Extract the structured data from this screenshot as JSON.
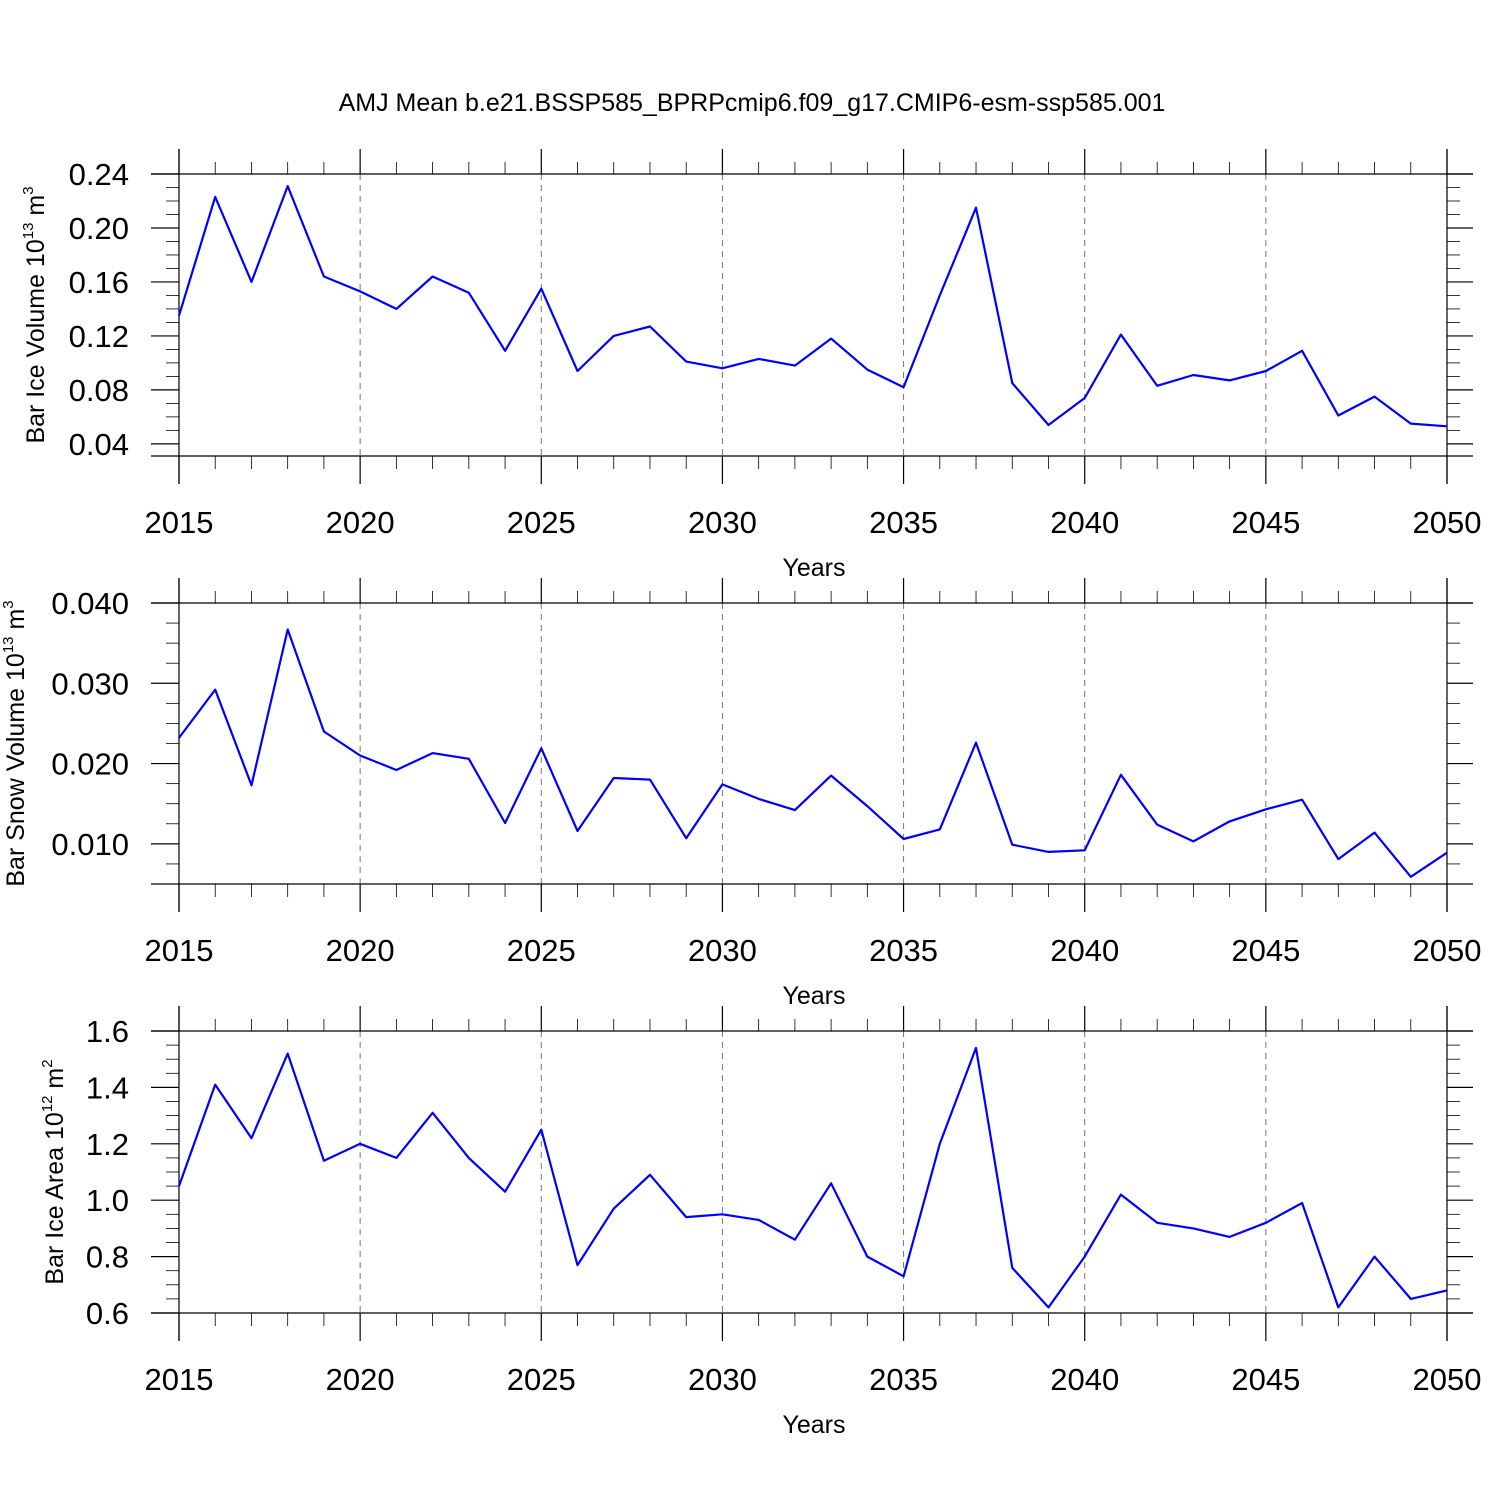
{
  "title": "AMJ Mean b.e21.BSSP585_BPRPcmip6.f09_g17.CMIP6-esm-ssp585.001",
  "colors": {
    "series": "#0000ff",
    "grid": "#777777",
    "frame": "#000000"
  },
  "chart_data": [
    {
      "type": "line",
      "id": "ice-volume",
      "xlabel": "Years",
      "ylabel": {
        "main": "Bar Ice Volume 10",
        "exp": "13",
        "unit": " m",
        "unit_exp": "3"
      },
      "xlim": [
        2015,
        2050
      ],
      "ylim": [
        0.031,
        0.24
      ],
      "yticks": [
        0.04,
        0.08,
        0.12,
        0.16,
        0.2,
        0.24
      ],
      "ytick_labels": [
        "0.04",
        "0.08",
        "0.12",
        "0.16",
        "0.20",
        "0.24"
      ],
      "xticks": [
        2015,
        2020,
        2025,
        2030,
        2035,
        2040,
        2045,
        2050
      ],
      "xtick_labels": [
        "2015",
        "2020",
        "2025",
        "2030",
        "2035",
        "2040",
        "2045",
        "2050"
      ],
      "grid": "vertical dashed at major x ticks",
      "x": [
        2015,
        2016,
        2017,
        2018,
        2019,
        2020,
        2021,
        2022,
        2023,
        2024,
        2025,
        2026,
        2027,
        2028,
        2029,
        2030,
        2031,
        2032,
        2033,
        2034,
        2035,
        2036,
        2037,
        2038,
        2039,
        2040,
        2041,
        2042,
        2043,
        2044,
        2045,
        2046,
        2047,
        2048,
        2049,
        2050
      ],
      "values": [
        0.135,
        0.223,
        0.16,
        0.231,
        0.164,
        0.153,
        0.14,
        0.164,
        0.152,
        0.109,
        0.155,
        0.094,
        0.12,
        0.127,
        0.101,
        0.096,
        0.103,
        0.098,
        0.118,
        0.095,
        0.082,
        0.15,
        0.215,
        0.085,
        0.054,
        0.074,
        0.121,
        0.083,
        0.091,
        0.087,
        0.094,
        0.109,
        0.061,
        0.075,
        0.055,
        0.053
      ]
    },
    {
      "type": "line",
      "id": "snow-volume",
      "xlabel": "Years",
      "ylabel": {
        "main": "Bar Snow Volume 10",
        "exp": "13",
        "unit": " m",
        "unit_exp": "3"
      },
      "xlim": [
        2015,
        2050
      ],
      "ylim": [
        0.005,
        0.04
      ],
      "yticks": [
        0.01,
        0.02,
        0.03,
        0.04
      ],
      "ytick_labels": [
        "0.010",
        "0.020",
        "0.030",
        "0.040"
      ],
      "xticks": [
        2015,
        2020,
        2025,
        2030,
        2035,
        2040,
        2045,
        2050
      ],
      "xtick_labels": [
        "2015",
        "2020",
        "2025",
        "2030",
        "2035",
        "2040",
        "2045",
        "2050"
      ],
      "grid": "vertical dashed at major x ticks",
      "x": [
        2015,
        2016,
        2017,
        2018,
        2019,
        2020,
        2021,
        2022,
        2023,
        2024,
        2025,
        2026,
        2027,
        2028,
        2029,
        2030,
        2031,
        2032,
        2033,
        2034,
        2035,
        2036,
        2037,
        2038,
        2039,
        2040,
        2041,
        2042,
        2043,
        2044,
        2045,
        2046,
        2047,
        2048,
        2049,
        2050
      ],
      "values": [
        0.0232,
        0.0292,
        0.0173,
        0.0367,
        0.024,
        0.021,
        0.0192,
        0.0213,
        0.0206,
        0.0126,
        0.0219,
        0.0116,
        0.0182,
        0.018,
        0.0107,
        0.0174,
        0.0156,
        0.0142,
        0.0185,
        0.0147,
        0.0106,
        0.0118,
        0.0226,
        0.0099,
        0.009,
        0.0092,
        0.0186,
        0.0124,
        0.0103,
        0.0128,
        0.0143,
        0.0155,
        0.0081,
        0.0114,
        0.0059,
        0.0089
      ]
    },
    {
      "type": "line",
      "id": "ice-area",
      "xlabel": "Years",
      "ylabel": {
        "main": "Bar Ice Area 10",
        "exp": "12",
        "unit": " m",
        "unit_exp": "2"
      },
      "xlim": [
        2015,
        2050
      ],
      "ylim": [
        0.6,
        1.6
      ],
      "yticks": [
        0.6,
        0.8,
        1.0,
        1.2,
        1.4,
        1.6
      ],
      "ytick_labels": [
        "0.6",
        "0.8",
        "1.0",
        "1.2",
        "1.4",
        "1.6"
      ],
      "xticks": [
        2015,
        2020,
        2025,
        2030,
        2035,
        2040,
        2045,
        2050
      ],
      "xtick_labels": [
        "2015",
        "2020",
        "2025",
        "2030",
        "2035",
        "2040",
        "2045",
        "2050"
      ],
      "grid": "vertical dashed at major x ticks",
      "x": [
        2015,
        2016,
        2017,
        2018,
        2019,
        2020,
        2021,
        2022,
        2023,
        2024,
        2025,
        2026,
        2027,
        2028,
        2029,
        2030,
        2031,
        2032,
        2033,
        2034,
        2035,
        2036,
        2037,
        2038,
        2039,
        2040,
        2041,
        2042,
        2043,
        2044,
        2045,
        2046,
        2047,
        2048,
        2049,
        2050
      ],
      "values": [
        1.05,
        1.41,
        1.22,
        1.52,
        1.14,
        1.2,
        1.15,
        1.31,
        1.15,
        1.03,
        1.25,
        0.77,
        0.97,
        1.09,
        0.94,
        0.95,
        0.93,
        0.86,
        1.06,
        0.8,
        0.73,
        1.2,
        1.54,
        0.76,
        0.62,
        0.8,
        1.02,
        0.92,
        0.9,
        0.87,
        0.92,
        0.99,
        0.62,
        0.8,
        0.65,
        0.68
      ]
    }
  ]
}
